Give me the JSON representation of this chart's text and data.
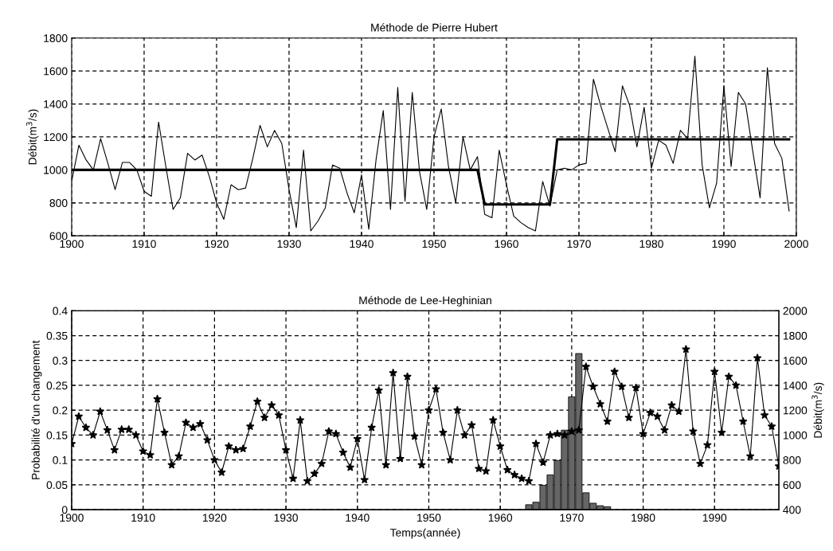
{
  "chart_data": [
    {
      "type": "line",
      "title": "Méthode de Pierre Hubert",
      "ylabel": "Débit(m$^{3}$/s)",
      "xlim": [
        1900,
        2000
      ],
      "xticks": [
        1900,
        1910,
        1920,
        1930,
        1940,
        1950,
        1960,
        1970,
        1980,
        1990,
        2000
      ],
      "ylim": [
        600,
        1800
      ],
      "yticks": [
        600,
        800,
        1000,
        1200,
        1400,
        1600,
        1800
      ],
      "grid": true,
      "line_style": "solid",
      "series": [
        {
          "color": "#000000",
          "x": [
            1900,
            1901,
            1902,
            1903,
            1904,
            1905,
            1906,
            1907,
            1908,
            1909,
            1910,
            1911,
            1912,
            1913,
            1914,
            1915,
            1916,
            1917,
            1918,
            1919,
            1920,
            1921,
            1922,
            1923,
            1924,
            1925,
            1926,
            1927,
            1928,
            1929,
            1930,
            1931,
            1932,
            1933,
            1934,
            1935,
            1936,
            1937,
            1938,
            1939,
            1940,
            1941,
            1942,
            1943,
            1944,
            1945,
            1946,
            1947,
            1948,
            1949,
            1950,
            1951,
            1952,
            1953,
            1954,
            1955,
            1956,
            1957,
            1958,
            1959,
            1960,
            1961,
            1962,
            1963,
            1964,
            1965,
            1966,
            1967,
            1968,
            1969,
            1970,
            1971,
            1972,
            1973,
            1974,
            1975,
            1976,
            1977,
            1978,
            1979,
            1980,
            1981,
            1982,
            1983,
            1984,
            1985,
            1986,
            1987,
            1988,
            1989,
            1990,
            1991,
            1992,
            1993,
            1994,
            1995,
            1996,
            1997,
            1998,
            1999
          ],
          "values": [
            930,
            1150,
            1060,
            1000,
            1190,
            1040,
            880,
            1045,
            1045,
            1000,
            870,
            840,
            1290,
            1020,
            760,
            830,
            1100,
            1060,
            1090,
            960,
            800,
            700,
            910,
            880,
            890,
            1070,
            1270,
            1140,
            1240,
            1160,
            880,
            650,
            1120,
            630,
            690,
            770,
            1030,
            1010,
            860,
            740,
            970,
            640,
            1060,
            1360,
            760,
            1500,
            810,
            1470,
            990,
            760,
            1200,
            1370,
            1020,
            800,
            1200,
            1000,
            1080,
            730,
            710,
            1120,
            910,
            720,
            680,
            650,
            630,
            930,
            780,
            1000,
            1010,
            1000,
            1030,
            1040,
            1550,
            1390,
            1250,
            1110,
            1510,
            1390,
            1140,
            1380,
            1010,
            1180,
            1150,
            1040,
            1240,
            1190,
            1690,
            1030,
            770,
            920,
            1510,
            1020,
            1470,
            1400,
            1110,
            830,
            1620,
            1160,
            1070,
            750
          ]
        },
        {
          "color": "#000000",
          "x": [
            1900,
            1956,
            1957,
            1966,
            1967,
            1999
          ],
          "values": [
            1000,
            1000,
            790,
            790,
            1185,
            1185
          ]
        }
      ]
    },
    {
      "type": "bar",
      "title": "Méthode de Lee-Heghinian",
      "xlabel": "Temps(année)",
      "ylabel": "Probabilité d'un changement",
      "y2label": "Débit(m$^{3}$/s)",
      "xlim": [
        1900,
        1999
      ],
      "xticks": [
        1900,
        1910,
        1920,
        1930,
        1940,
        1950,
        1960,
        1970,
        1980,
        1990
      ],
      "ylim": [
        0,
        0.4
      ],
      "yticks": [
        0,
        0.05,
        0.1,
        0.15,
        0.2,
        0.25,
        0.3,
        0.35,
        0.4
      ],
      "y2lim": [
        400,
        2000
      ],
      "y2ticks": [
        400,
        600,
        800,
        1000,
        1200,
        1400,
        1600,
        1800,
        2000
      ],
      "grid": true,
      "series": [
        {
          "type": "bar",
          "color": "#666666",
          "x": [
            1964,
            1965,
            1966,
            1967,
            1968,
            1969,
            1970,
            1971,
            1972,
            1973,
            1974,
            1975
          ],
          "values": [
            0.01,
            0.015,
            0.049,
            0.07,
            0.099,
            0.16,
            0.227,
            0.314,
            0.034,
            0.013,
            0.008,
            0.006
          ]
        },
        {
          "type": "line",
          "axis": "y2",
          "marker": "star",
          "line_style": "solid",
          "color": "#000000",
          "x": [
            1900,
            1901,
            1902,
            1903,
            1904,
            1905,
            1906,
            1907,
            1908,
            1909,
            1910,
            1911,
            1912,
            1913,
            1914,
            1915,
            1916,
            1917,
            1918,
            1919,
            1920,
            1921,
            1922,
            1923,
            1924,
            1925,
            1926,
            1927,
            1928,
            1929,
            1930,
            1931,
            1932,
            1933,
            1934,
            1935,
            1936,
            1937,
            1938,
            1939,
            1940,
            1941,
            1942,
            1943,
            1944,
            1945,
            1946,
            1947,
            1948,
            1949,
            1950,
            1951,
            1952,
            1953,
            1954,
            1955,
            1956,
            1957,
            1958,
            1959,
            1960,
            1961,
            1962,
            1963,
            1964,
            1965,
            1966,
            1967,
            1968,
            1969,
            1970,
            1971,
            1972,
            1973,
            1974,
            1975,
            1976,
            1977,
            1978,
            1979,
            1980,
            1981,
            1982,
            1983,
            1984,
            1985,
            1986,
            1987,
            1988,
            1989,
            1990,
            1991,
            1992,
            1993,
            1994,
            1995,
            1996,
            1997,
            1998,
            1999
          ],
          "values": [
            930,
            1150,
            1060,
            1000,
            1190,
            1040,
            880,
            1045,
            1045,
            1000,
            870,
            840,
            1290,
            1020,
            760,
            830,
            1100,
            1060,
            1090,
            960,
            800,
            700,
            910,
            880,
            890,
            1070,
            1270,
            1140,
            1240,
            1160,
            880,
            650,
            1120,
            630,
            690,
            770,
            1030,
            1010,
            860,
            740,
            970,
            640,
            1060,
            1360,
            760,
            1500,
            810,
            1470,
            990,
            760,
            1200,
            1370,
            1020,
            800,
            1200,
            1000,
            1080,
            730,
            710,
            1120,
            910,
            720,
            680,
            650,
            630,
            930,
            780,
            1000,
            1010,
            1000,
            1030,
            1040,
            1550,
            1390,
            1250,
            1110,
            1510,
            1390,
            1140,
            1380,
            1010,
            1180,
            1150,
            1040,
            1240,
            1190,
            1690,
            1030,
            770,
            920,
            1510,
            1020,
            1470,
            1400,
            1110,
            830,
            1620,
            1160,
            1070,
            750
          ]
        }
      ]
    }
  ]
}
